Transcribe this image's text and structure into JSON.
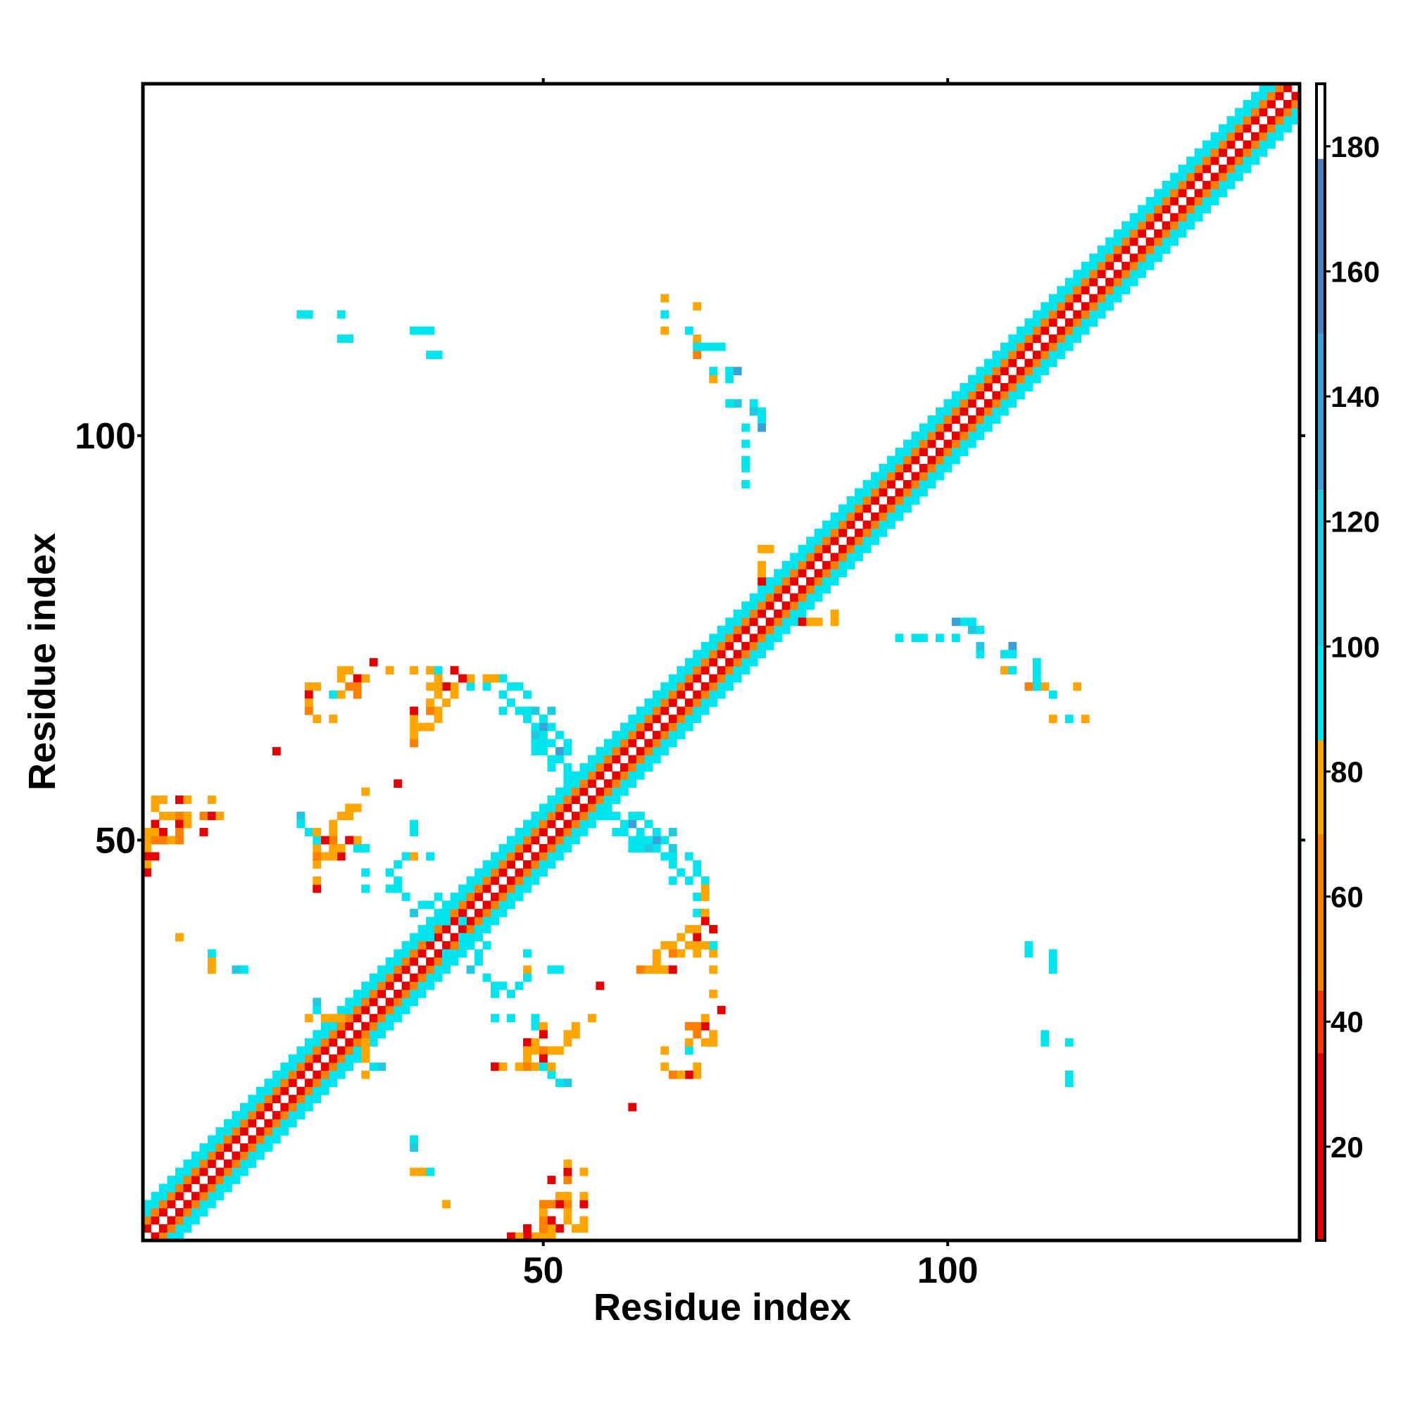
{
  "chart_data": {
    "type": "heatmap",
    "title": "",
    "xlabel": "Residue index",
    "ylabel": "Residue index",
    "xlim": [
      1,
      143
    ],
    "ylim": [
      1,
      143
    ],
    "x_ticks": [
      50,
      100
    ],
    "y_ticks": [
      50,
      100
    ],
    "grid": false,
    "legend": "colorbar-right",
    "colorbar": {
      "range": [
        5,
        190
      ],
      "ticks": [
        20,
        40,
        60,
        80,
        100,
        120,
        140,
        160,
        180
      ],
      "segments": [
        {
          "from": 5,
          "to": 35,
          "color": "#e60000"
        },
        {
          "from": 35,
          "to": 45,
          "color": "#ff3300"
        },
        {
          "from": 45,
          "to": 70,
          "color": "#ff8000"
        },
        {
          "from": 70,
          "to": 85,
          "color": "#ffa500"
        },
        {
          "from": 85,
          "to": 100,
          "color": "#00e5ee"
        },
        {
          "from": 100,
          "to": 125,
          "color": "#20c8e0"
        },
        {
          "from": 125,
          "to": 150,
          "color": "#3aa0d8"
        },
        {
          "from": 150,
          "to": 178,
          "color": "#4a80c0"
        },
        {
          "from": 178,
          "to": 190,
          "color": "#ffffff"
        }
      ]
    },
    "diagonal_band": {
      "from_residue": 1,
      "to_residue": 143,
      "offset_values": [
        {
          "offset": 1,
          "value": 8
        },
        {
          "offset": 2,
          "value": 60
        },
        {
          "offset": 3,
          "value": 90
        },
        {
          "offset": 4,
          "value": 95
        }
      ]
    },
    "cells": [
      [
        20,
        115,
        95
      ],
      [
        21,
        115,
        95
      ],
      [
        25,
        115,
        95
      ],
      [
        25,
        112,
        95
      ],
      [
        26,
        112,
        95
      ],
      [
        65,
        117,
        75
      ],
      [
        65,
        115,
        95
      ],
      [
        65,
        113,
        75
      ],
      [
        68,
        113,
        95
      ],
      [
        69,
        111,
        75
      ],
      [
        69,
        110,
        60
      ],
      [
        72,
        111,
        95
      ],
      [
        73,
        108,
        95
      ],
      [
        74,
        108,
        140
      ],
      [
        76,
        104,
        95
      ],
      [
        76,
        103,
        110
      ],
      [
        77,
        103,
        95
      ],
      [
        77,
        102,
        95
      ],
      [
        77,
        101,
        125
      ],
      [
        82,
        77,
        30
      ],
      [
        83,
        77,
        75
      ],
      [
        84,
        77,
        75
      ],
      [
        86,
        77,
        75
      ],
      [
        86,
        78,
        75
      ],
      [
        94,
        75,
        95
      ],
      [
        96,
        75,
        95
      ],
      [
        97,
        75,
        95
      ],
      [
        99,
        75,
        95
      ],
      [
        101,
        75,
        95
      ],
      [
        104,
        74,
        110
      ],
      [
        104,
        73,
        95
      ],
      [
        107,
        73,
        95
      ],
      [
        108,
        73,
        95
      ],
      [
        107,
        71,
        75
      ],
      [
        108,
        71,
        95
      ],
      [
        111,
        71,
        95
      ],
      [
        111,
        70,
        95
      ],
      [
        112,
        69,
        75
      ],
      [
        111,
        69,
        95
      ],
      [
        116,
        69,
        75
      ],
      [
        29,
        72,
        8
      ],
      [
        25,
        71,
        75
      ],
      [
        26,
        71,
        75
      ],
      [
        27,
        70,
        30
      ],
      [
        28,
        70,
        75
      ],
      [
        25,
        70,
        75
      ],
      [
        27,
        69,
        60
      ],
      [
        21,
        69,
        75
      ],
      [
        22,
        69,
        75
      ],
      [
        26,
        69,
        60
      ],
      [
        24,
        68,
        95
      ],
      [
        25,
        68,
        75
      ],
      [
        27,
        68,
        60
      ],
      [
        21,
        68,
        30
      ],
      [
        21,
        67,
        75
      ],
      [
        21,
        66,
        60
      ],
      [
        22,
        65,
        75
      ],
      [
        24,
        65,
        75
      ],
      [
        31,
        71,
        75
      ],
      [
        34,
        71,
        75
      ],
      [
        36,
        71,
        75
      ],
      [
        37,
        71,
        95
      ],
      [
        39,
        71,
        75
      ],
      [
        41,
        69,
        95
      ],
      [
        43,
        69,
        95
      ],
      [
        45,
        68,
        95
      ],
      [
        48,
        68,
        95
      ],
      [
        45,
        66,
        95
      ],
      [
        48,
        66,
        95
      ],
      [
        49,
        66,
        110
      ],
      [
        50,
        65,
        95
      ],
      [
        51,
        66,
        110
      ],
      [
        50,
        64,
        140
      ],
      [
        51,
        64,
        95
      ],
      [
        50,
        63,
        95
      ],
      [
        49,
        63,
        110
      ],
      [
        52,
        63,
        95
      ],
      [
        53,
        62,
        95
      ],
      [
        52,
        61,
        140
      ],
      [
        17,
        61,
        8
      ],
      [
        2,
        55,
        75
      ],
      [
        3,
        55,
        75
      ],
      [
        5,
        55,
        30
      ],
      [
        6,
        55,
        75
      ],
      [
        9,
        55,
        75
      ],
      [
        2,
        54,
        75
      ],
      [
        3,
        53,
        75
      ],
      [
        4,
        53,
        75
      ],
      [
        5,
        53,
        60
      ],
      [
        6,
        53,
        75
      ],
      [
        8,
        53,
        60
      ],
      [
        9,
        53,
        30
      ],
      [
        10,
        53,
        75
      ],
      [
        2,
        52,
        30
      ],
      [
        5,
        52,
        30
      ],
      [
        6,
        52,
        75
      ],
      [
        1,
        51,
        75
      ],
      [
        2,
        51,
        75
      ],
      [
        3,
        51,
        30
      ],
      [
        5,
        51,
        60
      ],
      [
        8,
        51,
        30
      ],
      [
        1,
        50,
        75
      ],
      [
        2,
        50,
        60
      ],
      [
        3,
        50,
        60
      ],
      [
        4,
        50,
        75
      ],
      [
        5,
        50,
        60
      ],
      [
        1,
        49,
        75
      ],
      [
        1,
        48,
        30
      ],
      [
        2,
        48,
        30
      ],
      [
        1,
        47,
        75
      ],
      [
        1,
        46,
        30
      ],
      [
        20,
        53,
        110
      ],
      [
        20,
        52,
        95
      ],
      [
        21,
        51,
        95
      ],
      [
        24,
        51,
        75
      ],
      [
        27,
        49,
        95
      ],
      [
        28,
        49,
        95
      ],
      [
        28,
        46,
        95
      ],
      [
        31,
        46,
        95
      ],
      [
        32,
        47,
        95
      ],
      [
        32,
        45,
        95
      ],
      [
        28,
        44,
        95
      ],
      [
        32,
        44,
        95
      ],
      [
        31,
        44,
        95
      ],
      [
        33,
        43,
        95
      ],
      [
        35,
        42,
        95
      ],
      [
        36,
        42,
        95
      ],
      [
        34,
        41,
        110
      ],
      [
        38,
        42,
        95
      ],
      [
        39,
        42,
        95
      ],
      [
        37,
        41,
        95
      ],
      [
        38,
        40,
        95
      ],
      [
        40,
        40,
        95
      ],
      [
        36,
        38,
        95
      ],
      [
        40,
        38,
        95
      ],
      [
        42,
        38,
        95
      ],
      [
        43,
        37,
        95
      ],
      [
        57,
        53,
        95
      ],
      [
        58,
        53,
        95
      ],
      [
        59,
        53,
        95
      ],
      [
        61,
        53,
        95
      ],
      [
        62,
        53,
        95
      ],
      [
        60,
        52,
        95
      ],
      [
        60,
        51,
        95
      ],
      [
        59,
        51,
        95
      ],
      [
        62,
        51,
        95
      ],
      [
        61,
        50,
        95
      ],
      [
        62,
        50,
        95
      ],
      [
        65,
        50,
        95
      ],
      [
        61,
        49,
        95
      ],
      [
        62,
        49,
        95
      ],
      [
        64,
        49,
        95
      ],
      [
        65,
        48,
        95
      ],
      [
        66,
        48,
        95
      ],
      [
        66,
        47,
        95
      ],
      [
        69,
        47,
        95
      ],
      [
        67,
        46,
        95
      ],
      [
        69,
        46,
        95
      ],
      [
        70,
        45,
        95
      ],
      [
        70,
        44,
        75
      ],
      [
        70,
        43,
        75
      ],
      [
        70,
        41,
        75
      ],
      [
        70,
        40,
        30
      ],
      [
        68,
        39,
        75
      ],
      [
        69,
        39,
        75
      ],
      [
        71,
        39,
        30
      ],
      [
        67,
        38,
        75
      ],
      [
        69,
        38,
        30
      ],
      [
        65,
        37,
        75
      ],
      [
        66,
        37,
        75
      ],
      [
        68,
        37,
        75
      ],
      [
        69,
        37,
        75
      ],
      [
        70,
        37,
        75
      ],
      [
        64,
        36,
        75
      ],
      [
        66,
        36,
        60
      ],
      [
        67,
        36,
        75
      ],
      [
        69,
        36,
        75
      ],
      [
        64,
        35,
        75
      ],
      [
        62,
        34,
        60
      ],
      [
        63,
        34,
        75
      ],
      [
        64,
        34,
        75
      ],
      [
        65,
        34,
        75
      ],
      [
        66,
        34,
        30
      ],
      [
        5,
        38,
        75
      ],
      [
        9,
        36,
        95
      ],
      [
        9,
        35,
        75
      ],
      [
        9,
        34,
        75
      ],
      [
        12,
        34,
        110
      ],
      [
        13,
        34,
        95
      ],
      [
        22,
        30,
        110
      ],
      [
        22,
        29,
        95
      ],
      [
        21,
        28,
        75
      ],
      [
        23,
        28,
        75
      ],
      [
        24,
        28,
        75
      ],
      [
        28,
        25,
        75
      ],
      [
        48,
        36,
        95
      ],
      [
        48,
        34,
        75
      ],
      [
        48,
        33,
        95
      ],
      [
        51,
        34,
        95
      ],
      [
        52,
        34,
        95
      ],
      [
        57,
        32,
        8
      ],
      [
        56,
        28,
        75
      ],
      [
        54,
        27,
        75
      ],
      [
        53,
        26,
        75
      ],
      [
        54,
        26,
        75
      ],
      [
        50,
        27,
        75
      ],
      [
        50,
        26,
        8
      ],
      [
        48,
        25,
        8
      ],
      [
        49,
        25,
        75
      ],
      [
        48,
        24,
        75
      ],
      [
        49,
        24,
        75
      ],
      [
        50,
        24,
        60
      ],
      [
        52,
        24,
        75
      ],
      [
        53,
        25,
        75
      ],
      [
        48,
        23,
        75
      ],
      [
        50,
        23,
        8
      ],
      [
        44,
        22,
        8
      ],
      [
        45,
        22,
        75
      ],
      [
        47,
        22,
        75
      ],
      [
        48,
        22,
        60
      ],
      [
        49,
        22,
        75
      ],
      [
        50,
        22,
        95
      ],
      [
        51,
        22,
        75
      ],
      [
        110,
        37,
        95
      ],
      [
        110,
        36,
        95
      ],
      [
        113,
        36,
        95
      ],
      [
        113,
        35,
        95
      ],
      [
        113,
        34,
        95
      ]
    ]
  }
}
